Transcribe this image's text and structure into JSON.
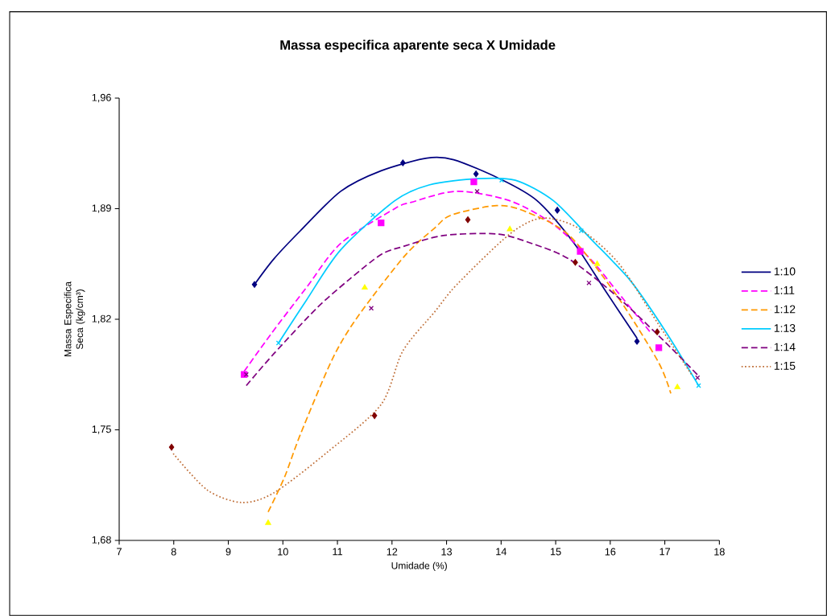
{
  "chart_data": {
    "type": "scatter",
    "title": "Massa especifica aparente seca X Umidade",
    "xlabel": "Umidade (%)",
    "ylabel": "Massa Especifica Seca (kg/cm³)",
    "xlim": [
      7,
      18
    ],
    "ylim": [
      1.68,
      1.96
    ],
    "xticks": [
      7,
      8,
      9,
      10,
      11,
      12,
      13,
      14,
      15,
      16,
      17,
      18
    ],
    "yticks": [
      {
        "value": 1.68,
        "label": "1,68"
      },
      {
        "value": 1.75,
        "label": "1,75"
      },
      {
        "value": 1.82,
        "label": "1,82"
      },
      {
        "value": 1.89,
        "label": "1,89"
      },
      {
        "value": 1.96,
        "label": "1,96"
      }
    ],
    "grid": false,
    "legend": "right",
    "series": [
      {
        "marker": "diamond",
        "color": "#000080",
        "x": [
          9.48,
          12.2,
          13.54,
          15.03,
          16.49
        ],
        "values": [
          1.842,
          1.919,
          1.912,
          1.889,
          1.806
        ]
      },
      {
        "marker": "square",
        "color": "#ff00ff",
        "x": [
          9.29,
          11.8,
          13.5,
          15.45,
          16.89
        ],
        "values": [
          1.785,
          1.881,
          1.907,
          1.863,
          1.802
        ]
      },
      {
        "marker": "triangle",
        "color": "#ffff00",
        "x": [
          9.73,
          11.5,
          14.16,
          15.76,
          17.23
        ],
        "values": [
          1.691,
          1.84,
          1.877,
          1.855,
          1.777
        ]
      },
      {
        "marker": "cross",
        "color": "#00ccff",
        "x": [
          9.92,
          11.65,
          14.01,
          15.47,
          17.62
        ],
        "values": [
          1.805,
          1.886,
          1.908,
          1.876,
          1.778
        ]
      },
      {
        "marker": "cross",
        "color": "#800080",
        "x": [
          9.33,
          11.62,
          13.56,
          15.61,
          17.6
        ],
        "values": [
          1.785,
          1.827,
          1.901,
          1.843,
          1.783
        ]
      },
      {
        "marker": "diamond",
        "color": "#800000",
        "x": [
          7.96,
          11.68,
          13.39,
          15.36,
          16.86
        ],
        "values": [
          1.739,
          1.759,
          1.883,
          1.856,
          1.812
        ]
      },
      {
        "type": "line",
        "name": "1:10",
        "line_style": "solid",
        "color": "#000080",
        "x": [
          9.48,
          9.83,
          10.32,
          11.06,
          11.8,
          12.64,
          13.13,
          13.97,
          14.66,
          15.34,
          15.93,
          16.49
        ],
        "values": [
          1.842,
          1.858,
          1.876,
          1.901,
          1.914,
          1.922,
          1.921,
          1.909,
          1.895,
          1.868,
          1.837,
          1.808
        ]
      },
      {
        "type": "line",
        "name": "1:11",
        "line_style": "dashed",
        "color": "#ff00ff",
        "x": [
          9.29,
          9.79,
          10.43,
          11.06,
          12.05,
          12.35,
          13.19,
          14.16,
          14.96,
          15.64,
          16.14,
          16.73
        ],
        "values": [
          1.787,
          1.811,
          1.84,
          1.868,
          1.89,
          1.894,
          1.901,
          1.895,
          1.88,
          1.858,
          1.837,
          1.812
        ]
      },
      {
        "type": "line",
        "name": "1:12",
        "line_style": "dashed",
        "color": "#ff9900",
        "x": [
          9.73,
          10.03,
          10.32,
          10.91,
          11.38,
          12.23,
          12.79,
          13.09,
          13.92,
          14.46,
          15.25,
          16.14,
          16.88,
          17.11
        ],
        "values": [
          1.698,
          1.72,
          1.747,
          1.795,
          1.822,
          1.86,
          1.878,
          1.886,
          1.892,
          1.888,
          1.873,
          1.834,
          1.793,
          1.773
        ]
      },
      {
        "type": "line",
        "name": "1:13",
        "line_style": "solid",
        "color": "#00ccff",
        "x": [
          9.92,
          10.43,
          11.06,
          12.05,
          12.68,
          13.57,
          14.26,
          14.96,
          15.64,
          16.38,
          17.02,
          17.62
        ],
        "values": [
          1.805,
          1.832,
          1.864,
          1.895,
          1.905,
          1.909,
          1.908,
          1.895,
          1.871,
          1.844,
          1.812,
          1.778
        ]
      },
      {
        "type": "line",
        "name": "1:14",
        "line_style": "dashed",
        "color": "#800080",
        "x": [
          9.33,
          9.83,
          10.62,
          11.21,
          11.8,
          12.2,
          12.94,
          13.92,
          14.56,
          15.25,
          16.14,
          17.11,
          17.62
        ],
        "values": [
          1.778,
          1.798,
          1.827,
          1.845,
          1.861,
          1.866,
          1.873,
          1.874,
          1.868,
          1.858,
          1.834,
          1.802,
          1.784
        ]
      },
      {
        "type": "line",
        "name": "1:15",
        "line_style": "dotted",
        "color": "#c0703a",
        "x": [
          7.99,
          8.61,
          9.24,
          9.83,
          10.82,
          11.8,
          12.2,
          12.79,
          13.19,
          14.16,
          14.75,
          15.4,
          16.14,
          16.88,
          17.51
        ],
        "values": [
          1.735,
          1.712,
          1.704,
          1.71,
          1.736,
          1.766,
          1.8,
          1.825,
          1.842,
          1.874,
          1.884,
          1.878,
          1.856,
          1.817,
          1.784
        ]
      }
    ]
  }
}
